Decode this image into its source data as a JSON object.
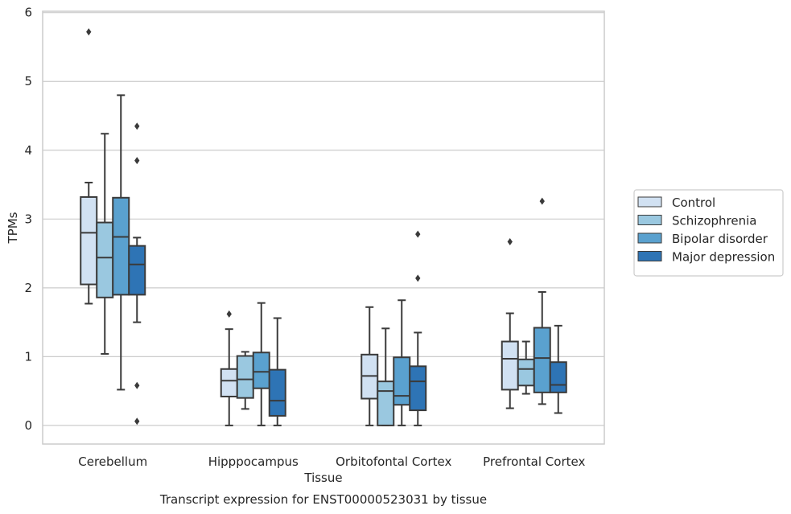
{
  "chart_data": {
    "type": "boxplot",
    "title": "",
    "caption": "Transcript expression for ENST00000523031 by tissue",
    "xlabel": "Tissue",
    "ylabel": "TPMs",
    "ylim": [
      -0.27,
      6.02
    ],
    "yticks": [
      0,
      1,
      2,
      3,
      4,
      5,
      6
    ],
    "grid": "horizontal",
    "legend_position": "right",
    "categories": [
      "Cerebellum",
      "Hipppocampus",
      "Orbitofontal Cortex",
      "Prefrontal Cortex"
    ],
    "series": [
      {
        "name": "Control",
        "color": "#d1e1f2",
        "boxes": [
          {
            "whisker_low": 1.77,
            "q1": 2.05,
            "median": 2.8,
            "q3": 3.32,
            "whisker_high": 3.53,
            "outliers": [
              5.72
            ]
          },
          {
            "whisker_low": 0.0,
            "q1": 0.42,
            "median": 0.65,
            "q3": 0.82,
            "whisker_high": 1.4,
            "outliers": [
              1.62
            ]
          },
          {
            "whisker_low": 0.0,
            "q1": 0.39,
            "median": 0.72,
            "q3": 1.03,
            "whisker_high": 1.72,
            "outliers": []
          },
          {
            "whisker_low": 0.25,
            "q1": 0.52,
            "median": 0.97,
            "q3": 1.22,
            "whisker_high": 1.63,
            "outliers": [
              2.67
            ]
          }
        ]
      },
      {
        "name": "Schizophrenia",
        "color": "#9ac8e0",
        "boxes": [
          {
            "whisker_low": 1.04,
            "q1": 1.86,
            "median": 2.44,
            "q3": 2.95,
            "whisker_high": 4.24,
            "outliers": []
          },
          {
            "whisker_low": 0.24,
            "q1": 0.4,
            "median": 0.67,
            "q3": 1.01,
            "whisker_high": 1.07,
            "outliers": []
          },
          {
            "whisker_low": 0.0,
            "q1": 0.0,
            "median": 0.5,
            "q3": 0.64,
            "whisker_high": 1.41,
            "outliers": []
          },
          {
            "whisker_low": 0.46,
            "q1": 0.58,
            "median": 0.82,
            "q3": 0.96,
            "whisker_high": 1.22,
            "outliers": []
          }
        ]
      },
      {
        "name": "Bipolar disorder",
        "color": "#5aa1cf",
        "boxes": [
          {
            "whisker_low": 0.52,
            "q1": 1.9,
            "median": 2.74,
            "q3": 3.31,
            "whisker_high": 4.8,
            "outliers": []
          },
          {
            "whisker_low": 0.0,
            "q1": 0.54,
            "median": 0.78,
            "q3": 1.06,
            "whisker_high": 1.78,
            "outliers": []
          },
          {
            "whisker_low": 0.0,
            "q1": 0.3,
            "median": 0.43,
            "q3": 0.99,
            "whisker_high": 1.82,
            "outliers": []
          },
          {
            "whisker_low": 0.31,
            "q1": 0.48,
            "median": 0.98,
            "q3": 1.42,
            "whisker_high": 1.94,
            "outliers": [
              3.26
            ]
          }
        ]
      },
      {
        "name": "Major depression",
        "color": "#2e74b5",
        "boxes": [
          {
            "whisker_low": 1.5,
            "q1": 1.9,
            "median": 2.34,
            "q3": 2.61,
            "whisker_high": 2.73,
            "outliers": [
              4.35,
              3.85,
              0.58,
              0.06
            ]
          },
          {
            "whisker_low": 0.0,
            "q1": 0.14,
            "median": 0.36,
            "q3": 0.81,
            "whisker_high": 1.56,
            "outliers": []
          },
          {
            "whisker_low": 0.0,
            "q1": 0.22,
            "median": 0.64,
            "q3": 0.86,
            "whisker_high": 1.35,
            "outliers": [
              2.78,
              2.14
            ]
          },
          {
            "whisker_low": 0.18,
            "q1": 0.48,
            "median": 0.59,
            "q3": 0.92,
            "whisker_high": 1.45,
            "outliers": []
          }
        ]
      }
    ]
  }
}
